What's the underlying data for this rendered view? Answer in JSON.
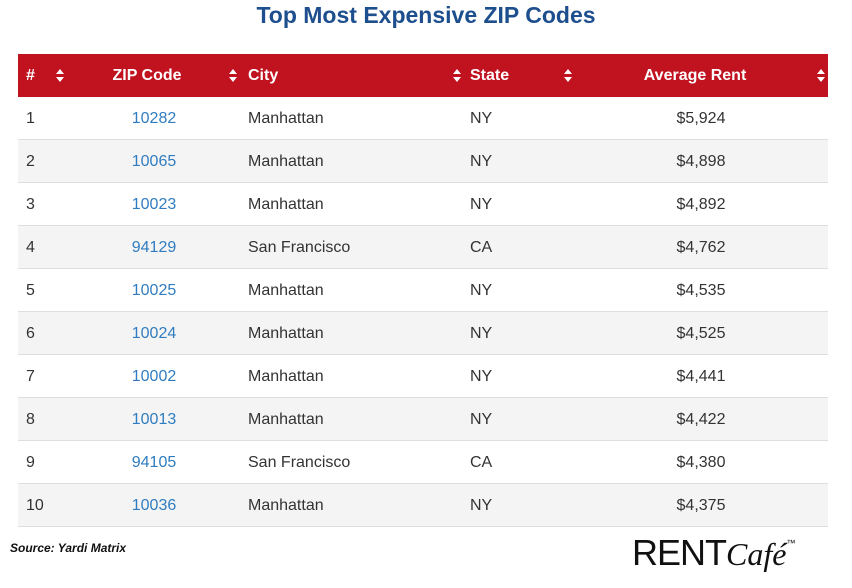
{
  "title": "Top Most Expensive ZIP Codes",
  "table": {
    "headers": [
      "#",
      "ZIP Code",
      "City",
      "State",
      "Average Rent"
    ],
    "rows": [
      [
        "1",
        "10282",
        "Manhattan",
        "NY",
        "$5,924"
      ],
      [
        "2",
        "10065",
        "Manhattan",
        "NY",
        "$4,898"
      ],
      [
        "3",
        "10023",
        "Manhattan",
        "NY",
        "$4,892"
      ],
      [
        "4",
        "94129",
        "San Francisco",
        "CA",
        "$4,762"
      ],
      [
        "5",
        "10025",
        "Manhattan",
        "NY",
        "$4,535"
      ],
      [
        "6",
        "10024",
        "Manhattan",
        "NY",
        "$4,525"
      ],
      [
        "7",
        "10002",
        "Manhattan",
        "NY",
        "$4,441"
      ],
      [
        "8",
        "10013",
        "Manhattan",
        "NY",
        "$4,422"
      ],
      [
        "9",
        "94105",
        "San Francisco",
        "CA",
        "$4,380"
      ],
      [
        "10",
        "10036",
        "Manhattan",
        "NY",
        "$4,375"
      ]
    ]
  },
  "source": "Source: Yardi Matrix",
  "logo": {
    "main": "RENT",
    "script": "Café",
    "mark": "™"
  }
}
